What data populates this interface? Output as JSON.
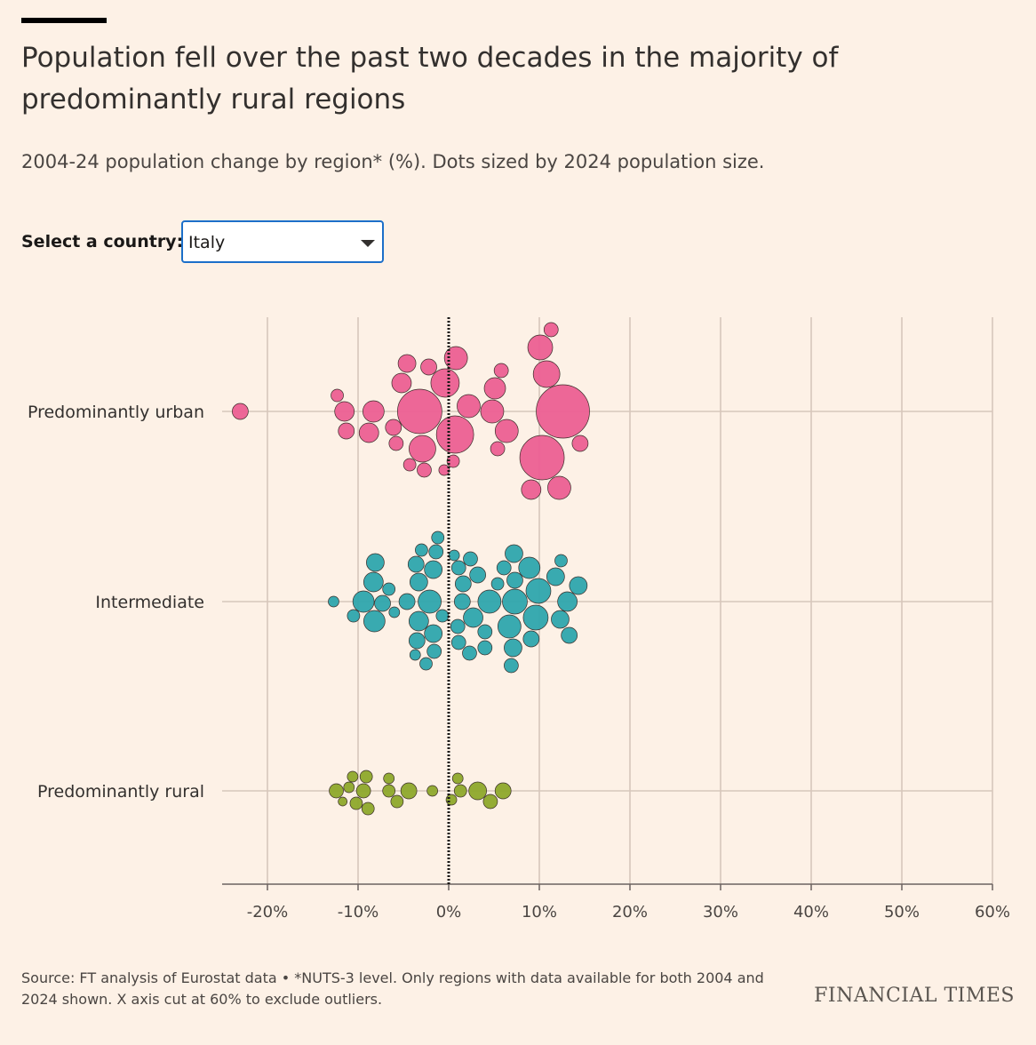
{
  "header": {
    "title": "Population fell over the past two decades in the majority of predominantly rural regions",
    "subtitle": "2004-24 population change by region* (%). Dots sized by 2024 population size."
  },
  "selector": {
    "label": "Select a country:",
    "value": "Italy",
    "icon": "chevron-down-icon"
  },
  "colors": {
    "urban": "#ec5f92",
    "intermediate": "#2ea5ad",
    "rural": "#8ea82b",
    "gridline": "#d7c7bb",
    "background": "#fdf1e6"
  },
  "chart_data": {
    "type": "scatter",
    "subtype": "beeswarm",
    "xlabel": "",
    "ylabel": "",
    "xlim": [
      -25,
      60
    ],
    "x_ticks": [
      -20,
      -10,
      0,
      10,
      20,
      30,
      40,
      50,
      60
    ],
    "x_tick_labels": [
      "-20%",
      "-10%",
      "0%",
      "10%",
      "20%",
      "30%",
      "40%",
      "50%",
      "60%"
    ],
    "zero_line": "dotted",
    "grid": true,
    "categories": [
      "Predominantly urban",
      "Intermediate",
      "Predominantly rural"
    ],
    "series": [
      {
        "name": "Predominantly urban",
        "color_key": "urban",
        "points": [
          {
            "x": -23,
            "r": 9
          },
          {
            "x": -12.3,
            "r": 7
          },
          {
            "x": -11.5,
            "r": 11
          },
          {
            "x": -11.3,
            "r": 9
          },
          {
            "x": -8.8,
            "r": 11
          },
          {
            "x": -8.3,
            "r": 12
          },
          {
            "x": -6.1,
            "r": 9
          },
          {
            "x": -5.8,
            "r": 8
          },
          {
            "x": -5.2,
            "r": 11
          },
          {
            "x": -4.6,
            "r": 10
          },
          {
            "x": -4.3,
            "r": 7
          },
          {
            "x": -3.2,
            "r": 25
          },
          {
            "x": -2.9,
            "r": 15
          },
          {
            "x": -2.7,
            "r": 8
          },
          {
            "x": -2.2,
            "r": 9
          },
          {
            "x": -0.4,
            "r": 16
          },
          {
            "x": -0.5,
            "r": 6
          },
          {
            "x": 0.5,
            "r": 7
          },
          {
            "x": 0.7,
            "r": 21
          },
          {
            "x": 0.8,
            "r": 13
          },
          {
            "x": 2.2,
            "r": 13
          },
          {
            "x": 4.8,
            "r": 13
          },
          {
            "x": 5.1,
            "r": 12
          },
          {
            "x": 5.4,
            "r": 8
          },
          {
            "x": 5.8,
            "r": 8
          },
          {
            "x": 6.4,
            "r": 13
          },
          {
            "x": 9.1,
            "r": 11
          },
          {
            "x": 10.1,
            "r": 14
          },
          {
            "x": 10.3,
            "r": 25
          },
          {
            "x": 10.8,
            "r": 15
          },
          {
            "x": 11.3,
            "r": 8
          },
          {
            "x": 12.2,
            "r": 13
          },
          {
            "x": 12.6,
            "r": 30
          },
          {
            "x": 14.5,
            "r": 9
          }
        ]
      },
      {
        "name": "Intermediate",
        "color_key": "intermediate",
        "points": [
          {
            "x": -12.7,
            "r": 6
          },
          {
            "x": -10.5,
            "r": 7
          },
          {
            "x": -9.4,
            "r": 12
          },
          {
            "x": -8.3,
            "r": 11
          },
          {
            "x": -8.2,
            "r": 12
          },
          {
            "x": -8.1,
            "r": 10
          },
          {
            "x": -7.3,
            "r": 9
          },
          {
            "x": -6.6,
            "r": 7
          },
          {
            "x": -6.0,
            "r": 6
          },
          {
            "x": -4.6,
            "r": 9
          },
          {
            "x": -3.6,
            "r": 9
          },
          {
            "x": -3.5,
            "r": 9
          },
          {
            "x": -3.7,
            "r": 6
          },
          {
            "x": -3.3,
            "r": 11
          },
          {
            "x": -3.3,
            "r": 10
          },
          {
            "x": -3.0,
            "r": 7
          },
          {
            "x": -2.5,
            "r": 7
          },
          {
            "x": -2.1,
            "r": 13
          },
          {
            "x": -1.7,
            "r": 10
          },
          {
            "x": -1.6,
            "r": 8
          },
          {
            "x": -1.4,
            "r": 8
          },
          {
            "x": -1.7,
            "r": 10
          },
          {
            "x": -1.2,
            "r": 7
          },
          {
            "x": -0.7,
            "r": 7
          },
          {
            "x": 0.6,
            "r": 6
          },
          {
            "x": 1.0,
            "r": 8
          },
          {
            "x": 1.1,
            "r": 8
          },
          {
            "x": 1.1,
            "r": 8
          },
          {
            "x": 1.5,
            "r": 9
          },
          {
            "x": 1.6,
            "r": 9
          },
          {
            "x": 2.4,
            "r": 8
          },
          {
            "x": 2.7,
            "r": 11
          },
          {
            "x": 2.3,
            "r": 8
          },
          {
            "x": 3.2,
            "r": 9
          },
          {
            "x": 4.0,
            "r": 8
          },
          {
            "x": 4.0,
            "r": 8
          },
          {
            "x": 4.5,
            "r": 13
          },
          {
            "x": 5.4,
            "r": 7
          },
          {
            "x": 6.1,
            "r": 8
          },
          {
            "x": 6.7,
            "r": 13
          },
          {
            "x": 6.9,
            "r": 8
          },
          {
            "x": 7.1,
            "r": 10
          },
          {
            "x": 7.2,
            "r": 10
          },
          {
            "x": 7.3,
            "r": 14
          },
          {
            "x": 7.3,
            "r": 9
          },
          {
            "x": 8.9,
            "r": 12
          },
          {
            "x": 9.1,
            "r": 9
          },
          {
            "x": 9.6,
            "r": 14
          },
          {
            "x": 9.9,
            "r": 14
          },
          {
            "x": 12.4,
            "r": 7
          },
          {
            "x": 12.3,
            "r": 10
          },
          {
            "x": 11.8,
            "r": 10
          },
          {
            "x": 13.1,
            "r": 11
          },
          {
            "x": 13.3,
            "r": 9
          },
          {
            "x": 14.3,
            "r": 10
          }
        ]
      },
      {
        "name": "Predominantly rural",
        "color_key": "rural",
        "points": [
          {
            "x": -12.4,
            "r": 8
          },
          {
            "x": -11.7,
            "r": 5
          },
          {
            "x": -11.0,
            "r": 6
          },
          {
            "x": -10.6,
            "r": 6
          },
          {
            "x": -10.2,
            "r": 7
          },
          {
            "x": -9.4,
            "r": 8
          },
          {
            "x": -9.1,
            "r": 7
          },
          {
            "x": -8.9,
            "r": 7
          },
          {
            "x": -6.6,
            "r": 7
          },
          {
            "x": -6.6,
            "r": 6
          },
          {
            "x": -5.7,
            "r": 7
          },
          {
            "x": -4.4,
            "r": 9
          },
          {
            "x": -1.8,
            "r": 6
          },
          {
            "x": 0.3,
            "r": 6
          },
          {
            "x": 1.0,
            "r": 6
          },
          {
            "x": 1.3,
            "r": 7
          },
          {
            "x": 3.2,
            "r": 10
          },
          {
            "x": 4.6,
            "r": 8
          },
          {
            "x": 6.0,
            "r": 9
          }
        ]
      }
    ],
    "legend": "none"
  },
  "footer": {
    "source": "Source: FT analysis of Eurostat data • *NUTS-3 level. Only regions with data available for both 2004 and 2024 shown. X axis cut at 60% to exclude outliers.",
    "logo_text": "FINANCIAL TIMES"
  }
}
